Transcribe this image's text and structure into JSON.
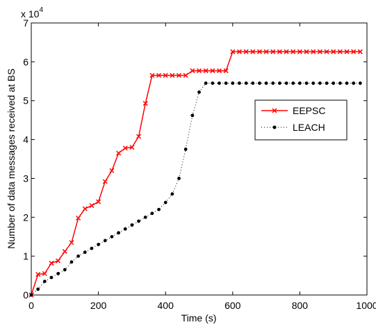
{
  "chart_data": {
    "type": "line",
    "title": "",
    "xlabel": "Time (s)",
    "ylabel": "Number of data messages received at BS",
    "y_multiplier_label": "x 10",
    "y_multiplier_exponent": "4",
    "xlim": [
      0,
      1000
    ],
    "ylim": [
      0,
      7
    ],
    "x_ticks": [
      0,
      200,
      400,
      600,
      800,
      1000
    ],
    "y_ticks": [
      0,
      1,
      2,
      3,
      4,
      5,
      6,
      7
    ],
    "grid": false,
    "legend_position": "right",
    "series": [
      {
        "name": "EEPSC",
        "color": "#ff0000",
        "line_style": "solid",
        "marker": "x",
        "points": [
          [
            0,
            0
          ],
          [
            20,
            0.53
          ],
          [
            40,
            0.55
          ],
          [
            60,
            0.82
          ],
          [
            80,
            0.88
          ],
          [
            100,
            1.12
          ],
          [
            120,
            1.35
          ],
          [
            140,
            1.98
          ],
          [
            160,
            2.22
          ],
          [
            180,
            2.3
          ],
          [
            200,
            2.4
          ],
          [
            220,
            2.92
          ],
          [
            240,
            3.2
          ],
          [
            260,
            3.65
          ],
          [
            280,
            3.78
          ],
          [
            300,
            3.8
          ],
          [
            320,
            4.08
          ],
          [
            340,
            4.93
          ],
          [
            360,
            5.65
          ],
          [
            380,
            5.65
          ],
          [
            400,
            5.65
          ],
          [
            420,
            5.65
          ],
          [
            440,
            5.65
          ],
          [
            460,
            5.65
          ],
          [
            480,
            5.77
          ],
          [
            500,
            5.77
          ],
          [
            520,
            5.77
          ],
          [
            540,
            5.77
          ],
          [
            560,
            5.77
          ],
          [
            580,
            5.77
          ],
          [
            600,
            6.26
          ],
          [
            620,
            6.26
          ],
          [
            640,
            6.26
          ],
          [
            660,
            6.26
          ],
          [
            680,
            6.26
          ],
          [
            700,
            6.26
          ],
          [
            720,
            6.26
          ],
          [
            740,
            6.26
          ],
          [
            760,
            6.26
          ],
          [
            780,
            6.26
          ],
          [
            800,
            6.26
          ],
          [
            820,
            6.26
          ],
          [
            840,
            6.26
          ],
          [
            860,
            6.26
          ],
          [
            880,
            6.26
          ],
          [
            900,
            6.26
          ],
          [
            920,
            6.26
          ],
          [
            940,
            6.26
          ],
          [
            960,
            6.26
          ],
          [
            980,
            6.26
          ]
        ]
      },
      {
        "name": "LEACH",
        "color": "#000000",
        "line_style": "dotted",
        "marker": "dot",
        "points": [
          [
            0,
            0
          ],
          [
            20,
            0.15
          ],
          [
            40,
            0.35
          ],
          [
            60,
            0.45
          ],
          [
            80,
            0.55
          ],
          [
            100,
            0.65
          ],
          [
            120,
            0.85
          ],
          [
            140,
            1.0
          ],
          [
            160,
            1.1
          ],
          [
            180,
            1.2
          ],
          [
            200,
            1.3
          ],
          [
            220,
            1.4
          ],
          [
            240,
            1.5
          ],
          [
            260,
            1.6
          ],
          [
            280,
            1.7
          ],
          [
            300,
            1.8
          ],
          [
            320,
            1.9
          ],
          [
            340,
            2.0
          ],
          [
            360,
            2.1
          ],
          [
            380,
            2.2
          ],
          [
            400,
            2.38
          ],
          [
            420,
            2.6
          ],
          [
            440,
            3.0
          ],
          [
            460,
            3.75
          ],
          [
            480,
            4.62
          ],
          [
            500,
            5.22
          ],
          [
            520,
            5.45
          ],
          [
            540,
            5.45
          ],
          [
            560,
            5.45
          ],
          [
            580,
            5.45
          ],
          [
            600,
            5.45
          ],
          [
            620,
            5.45
          ],
          [
            640,
            5.45
          ],
          [
            660,
            5.45
          ],
          [
            680,
            5.45
          ],
          [
            700,
            5.45
          ],
          [
            720,
            5.45
          ],
          [
            740,
            5.45
          ],
          [
            760,
            5.45
          ],
          [
            780,
            5.45
          ],
          [
            800,
            5.45
          ],
          [
            820,
            5.45
          ],
          [
            840,
            5.45
          ],
          [
            860,
            5.45
          ],
          [
            880,
            5.45
          ],
          [
            900,
            5.45
          ],
          [
            920,
            5.45
          ],
          [
            940,
            5.45
          ],
          [
            960,
            5.45
          ],
          [
            980,
            5.45
          ]
        ]
      }
    ]
  }
}
